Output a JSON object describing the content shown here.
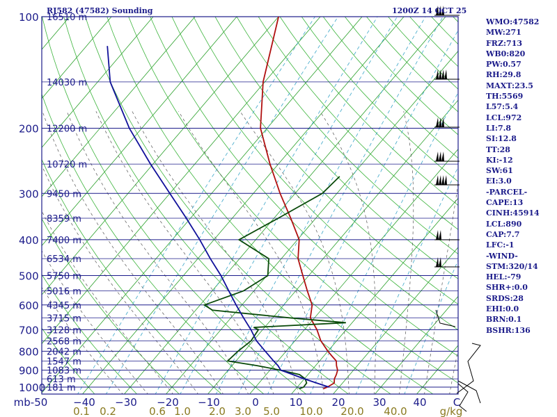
{
  "header": {
    "left": "RJ582 (47582) Sounding",
    "right": "1200Z 14 OCT 25"
  },
  "stats": [
    "WMO:47582",
    "MW:271",
    "FRZ:713",
    "WB0:820",
    "PW:0.57",
    "RH:29.8",
    "MAXT:23.5",
    "TH:5569",
    "L57:5.4",
    "LCL:972",
    "LI:7.8",
    "SI:12.8",
    "TT:28",
    "KI:-12",
    "SW:61",
    "EI:3.0",
    "-PARCEL-",
    "CAPE:13",
    "CINH:45914",
    "LCL:890",
    "CAP:7.7",
    "LFC:-1",
    "-WIND-",
    "STM:320/14",
    "HEL:-79",
    "SHR+:0.0",
    "SRDS:28",
    "EHI:0.0",
    "BRN:0.1",
    "BSHR:136"
  ],
  "chart_data": {
    "type": "line",
    "title": "RJ582 (47582) Sounding",
    "diagram": "skew-T log-P",
    "y_axis": {
      "scale": "log",
      "unit": "mb",
      "ticks": [
        100,
        200,
        300,
        400,
        500,
        600,
        700,
        800,
        900,
        1000
      ]
    },
    "x_axis": {
      "unit": "C",
      "ticks": [
        -50,
        -40,
        -30,
        -20,
        -10,
        0,
        10,
        20,
        30,
        40
      ],
      "tick_labels": [
        "mb-50",
        "−40",
        "−30",
        "−20",
        "−10",
        "0",
        "10",
        "20",
        "30",
        "40",
        "C"
      ]
    },
    "mixing_ratio_labels": [
      "0.1",
      "0.2",
      "0.6",
      "1.0",
      "2.0",
      "3.0",
      "5.0",
      "10.0",
      "20.0",
      "40.0",
      "g/kg"
    ],
    "height_labels": [
      {
        "p": 100,
        "label": "16510 m"
      },
      {
        "p": 150,
        "label": "14030 m"
      },
      {
        "p": 200,
        "label": "12200 m"
      },
      {
        "p": 250,
        "label": "10720 m"
      },
      {
        "p": 300,
        "label": "9450 m"
      },
      {
        "p": 350,
        "label": "8359 m"
      },
      {
        "p": 400,
        "label": "7400 m"
      },
      {
        "p": 450,
        "label": "6534 m"
      },
      {
        "p": 500,
        "label": "5750 m"
      },
      {
        "p": 550,
        "label": "5016 m"
      },
      {
        "p": 600,
        "label": "4345 m"
      },
      {
        "p": 650,
        "label": "3715 m"
      },
      {
        "p": 700,
        "label": "3128 m"
      },
      {
        "p": 750,
        "label": "2568 m"
      },
      {
        "p": 800,
        "label": "2042 m"
      },
      {
        "p": 850,
        "label": "1547 m"
      },
      {
        "p": 900,
        "label": "1083 m"
      },
      {
        "p": 950,
        "label": "613 m"
      },
      {
        "p": 1000,
        "label": "181 m"
      }
    ],
    "series": [
      {
        "color": "#b01010",
        "points": [
          [
            1010,
            16.6
          ],
          [
            1000,
            17.2
          ],
          [
            975,
            18.0
          ],
          [
            950,
            17.2
          ],
          [
            925,
            16.8
          ],
          [
            900,
            16.2
          ],
          [
            875,
            15.0
          ],
          [
            850,
            14.0
          ],
          [
            825,
            12.0
          ],
          [
            800,
            10.0
          ],
          [
            750,
            6.2
          ],
          [
            700,
            3.0
          ],
          [
            650,
            -1.0
          ],
          [
            600,
            -3.2
          ],
          [
            550,
            -7.2
          ],
          [
            500,
            -11.4
          ],
          [
            450,
            -16.0
          ],
          [
            400,
            -19.6
          ],
          [
            350,
            -26.0
          ],
          [
            300,
            -33.6
          ],
          [
            250,
            -42.0
          ],
          [
            200,
            -51.6
          ],
          [
            150,
            -60.4
          ],
          [
            100,
            -70.0
          ]
        ]
      },
      {
        "color": "#0a4a0a",
        "points": [
          [
            1010,
            10.8
          ],
          [
            1000,
            11.5
          ],
          [
            975,
            11.4
          ],
          [
            950,
            10.2
          ],
          [
            925,
            8.0
          ],
          [
            900,
            2.5
          ],
          [
            875,
            -4.0
          ],
          [
            850,
            -12.0
          ],
          [
            800,
            -11.5
          ],
          [
            750,
            -10.5
          ],
          [
            700,
            -11.0
          ],
          [
            690,
            -12.6
          ],
          [
            670,
            8.5
          ],
          [
            650,
            -6.0
          ],
          [
            620,
            -26.0
          ],
          [
            600,
            -29.0
          ],
          [
            550,
            -22.5
          ],
          [
            500,
            -19.8
          ],
          [
            450,
            -23.0
          ],
          [
            400,
            -34.0
          ],
          [
            350,
            -29.0
          ],
          [
            300,
            -23.5
          ],
          [
            270,
            -22.8
          ]
        ]
      },
      {
        "color": "#10109a",
        "points": [
          [
            1000,
            17.6
          ],
          [
            975,
            13.8
          ],
          [
            950,
            10.0
          ],
          [
            925,
            6.4
          ],
          [
            900,
            2.6
          ],
          [
            875,
            1.0
          ],
          [
            850,
            -1.0
          ],
          [
            800,
            -5.0
          ],
          [
            750,
            -9.2
          ],
          [
            700,
            -12.8
          ],
          [
            650,
            -17.0
          ],
          [
            600,
            -21.4
          ],
          [
            550,
            -26.0
          ],
          [
            500,
            -31.0
          ],
          [
            450,
            -37.0
          ],
          [
            400,
            -43.4
          ],
          [
            350,
            -51.0
          ],
          [
            300,
            -60.0
          ],
          [
            250,
            -70.6
          ],
          [
            200,
            -83.0
          ],
          [
            150,
            -97.0
          ],
          [
            120,
            -105.0
          ]
        ]
      }
    ],
    "wind_barbs_drawn": true
  }
}
